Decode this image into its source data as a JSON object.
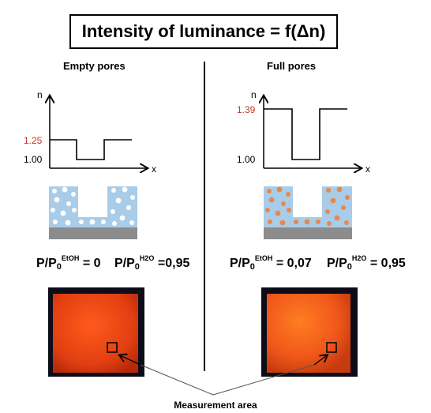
{
  "title": "Intensity of luminance = f(Δn)",
  "panels": {
    "left": {
      "title": "Empty pores",
      "axis_y": "n",
      "axis_x": "x",
      "n_high": "1.25",
      "n_low": "1.00",
      "pressure": {
        "p": "P/P",
        "sub": "0",
        "sup": "EtOH",
        "eq": " = 0"
      },
      "pressure2": {
        "p": "P/P",
        "sub": "0",
        "sup": "H2O",
        "eq": " =0,95"
      }
    },
    "right": {
      "title": "Full pores",
      "axis_y": "n",
      "axis_x": "x",
      "n_high": "1.39",
      "n_low": "1.00",
      "pressure": {
        "p": "P/P",
        "sub": "0",
        "sup": "EtOH",
        "eq": " = 0,07"
      },
      "pressure2": {
        "p": "P/P",
        "sub": "0",
        "sup": "H2O",
        "eq": " = 0,95"
      }
    }
  },
  "measurement_label": "Measurement area",
  "colors": {
    "high_n_label": "#c0392b",
    "empty_pore_fill": "#ffffff",
    "full_pore_fill": "#e8884a",
    "matrix": "#a9cce8",
    "substrate": "#8c8c8c",
    "luminescence": "#e8501c"
  }
}
